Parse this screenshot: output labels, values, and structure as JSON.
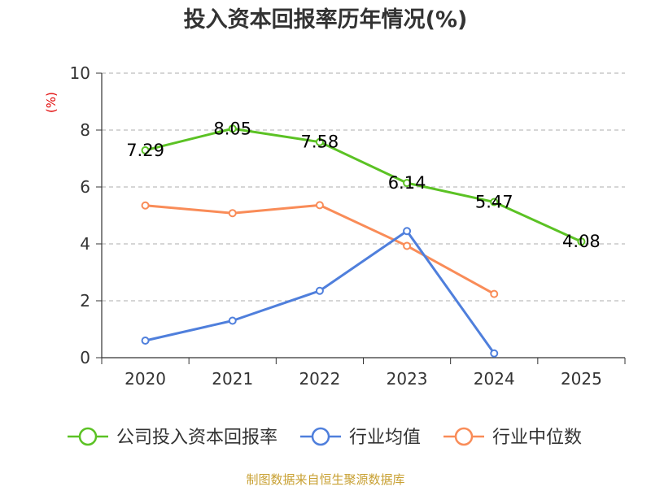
{
  "chart_data": {
    "type": "line",
    "title": "投入资本回报率历年情况(%)",
    "unit_label": "(%)",
    "categories": [
      "2020",
      "2021",
      "2022",
      "2023",
      "2024",
      "2025"
    ],
    "ylim": [
      0,
      10
    ],
    "yticks": [
      0,
      2,
      4,
      6,
      8,
      10
    ],
    "grid": true,
    "legend_position": "bottom",
    "series": [
      {
        "name": "公司投入资本回报率",
        "color": "#5bc224",
        "values": [
          7.29,
          8.05,
          7.58,
          6.14,
          5.47,
          4.08
        ],
        "labels": [
          "7.29",
          "8.05",
          "7.58",
          "6.14",
          "5.47",
          "4.08"
        ],
        "show_labels": true
      },
      {
        "name": "行业均值",
        "color": "#4f7fdc",
        "values": [
          0.6,
          1.3,
          2.35,
          4.45,
          0.15,
          null
        ],
        "show_labels": false
      },
      {
        "name": "行业中位数",
        "color": "#f98c58",
        "values": [
          5.35,
          5.08,
          5.36,
          3.93,
          2.24,
          null
        ],
        "show_labels": false
      }
    ],
    "source": "制图数据来自恒生聚源数据库"
  }
}
